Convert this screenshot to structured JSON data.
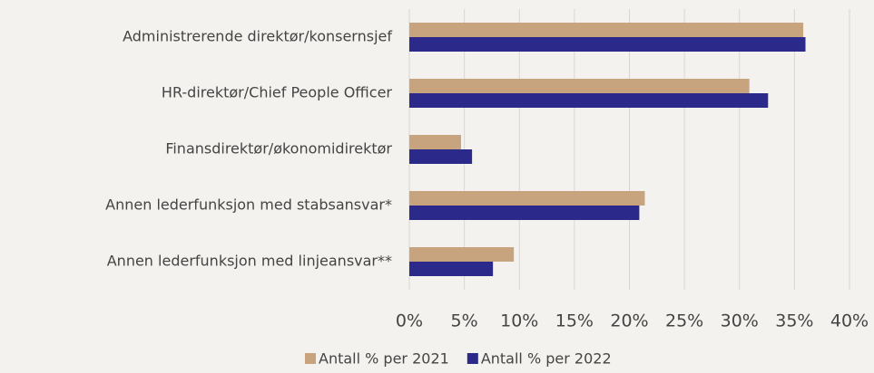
{
  "chart_data": {
    "type": "barh",
    "categories": [
      "Administrerende direktør/konsernsjef",
      "HR-direktør/Chief People Officer",
      "Finansdirektør/økonomidirektør",
      "Annen lederfunksjon med stabsansvar*",
      "Annen lederfunksjon med linjeansvar**"
    ],
    "series": [
      {
        "name": "Antall % per 2021",
        "color": "#c8a47e",
        "values": [
          35.8,
          30.9,
          4.7,
          21.4,
          9.5
        ]
      },
      {
        "name": "Antall % per 2022",
        "color": "#2b2a8a",
        "values": [
          36.0,
          32.6,
          5.7,
          20.9,
          7.6
        ]
      }
    ],
    "xlim": [
      0,
      40
    ],
    "xticks": [
      {
        "value": 0,
        "label": "0%"
      },
      {
        "value": 5,
        "label": "5%"
      },
      {
        "value": 10,
        "label": "10%"
      },
      {
        "value": 15,
        "label": "15%"
      },
      {
        "value": 20,
        "label": "20%"
      },
      {
        "value": 25,
        "label": "25%"
      },
      {
        "value": 30,
        "label": "30%"
      },
      {
        "value": 35,
        "label": "35%"
      },
      {
        "value": 40,
        "label": "40%"
      }
    ],
    "grid": true
  }
}
